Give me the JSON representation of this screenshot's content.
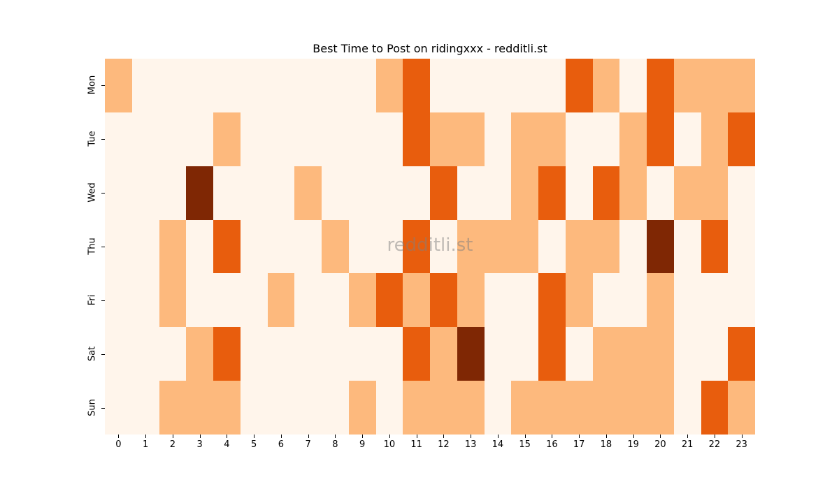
{
  "chart_data": {
    "type": "heatmap",
    "title": "Best Time to Post on ridingxxx - redditli.st",
    "xlabel": "",
    "ylabel": "",
    "x": [
      "0",
      "1",
      "2",
      "3",
      "4",
      "5",
      "6",
      "7",
      "8",
      "9",
      "10",
      "11",
      "12",
      "13",
      "14",
      "15",
      "16",
      "17",
      "18",
      "19",
      "20",
      "21",
      "22",
      "23"
    ],
    "y": [
      "Mon",
      "Tue",
      "Wed",
      "Thu",
      "Fri",
      "Sat",
      "Sun"
    ],
    "values": [
      [
        1,
        0,
        0,
        0,
        0,
        0,
        0,
        0,
        0,
        0,
        1,
        2,
        0,
        0,
        0,
        0,
        0,
        2,
        1,
        0,
        2,
        1,
        1,
        1
      ],
      [
        0,
        0,
        0,
        0,
        1,
        0,
        0,
        0,
        0,
        0,
        0,
        2,
        1,
        1,
        0,
        1,
        1,
        0,
        0,
        1,
        2,
        0,
        1,
        2
      ],
      [
        0,
        0,
        0,
        3,
        0,
        0,
        0,
        1,
        0,
        0,
        0,
        0,
        2,
        0,
        0,
        1,
        2,
        0,
        2,
        1,
        0,
        1,
        1,
        0
      ],
      [
        0,
        0,
        1,
        0,
        2,
        0,
        0,
        0,
        1,
        0,
        0,
        2,
        0,
        1,
        1,
        1,
        0,
        1,
        1,
        0,
        3,
        0,
        2,
        0
      ],
      [
        0,
        0,
        1,
        0,
        0,
        0,
        1,
        0,
        0,
        1,
        2,
        1,
        2,
        1,
        0,
        0,
        2,
        1,
        0,
        0,
        1,
        0,
        0,
        0
      ],
      [
        0,
        0,
        0,
        1,
        2,
        0,
        0,
        0,
        0,
        0,
        0,
        2,
        1,
        3,
        0,
        0,
        2,
        0,
        1,
        1,
        1,
        0,
        0,
        2
      ],
      [
        0,
        0,
        1,
        1,
        1,
        0,
        0,
        0,
        0,
        1,
        0,
        1,
        1,
        1,
        0,
        1,
        1,
        1,
        1,
        1,
        1,
        0,
        2,
        1
      ]
    ],
    "colorscale": [
      "#fff5eb",
      "#fdb97d",
      "#e85d0d",
      "#7f2704"
    ],
    "colorbar": false,
    "watermark": "redditli.st"
  }
}
